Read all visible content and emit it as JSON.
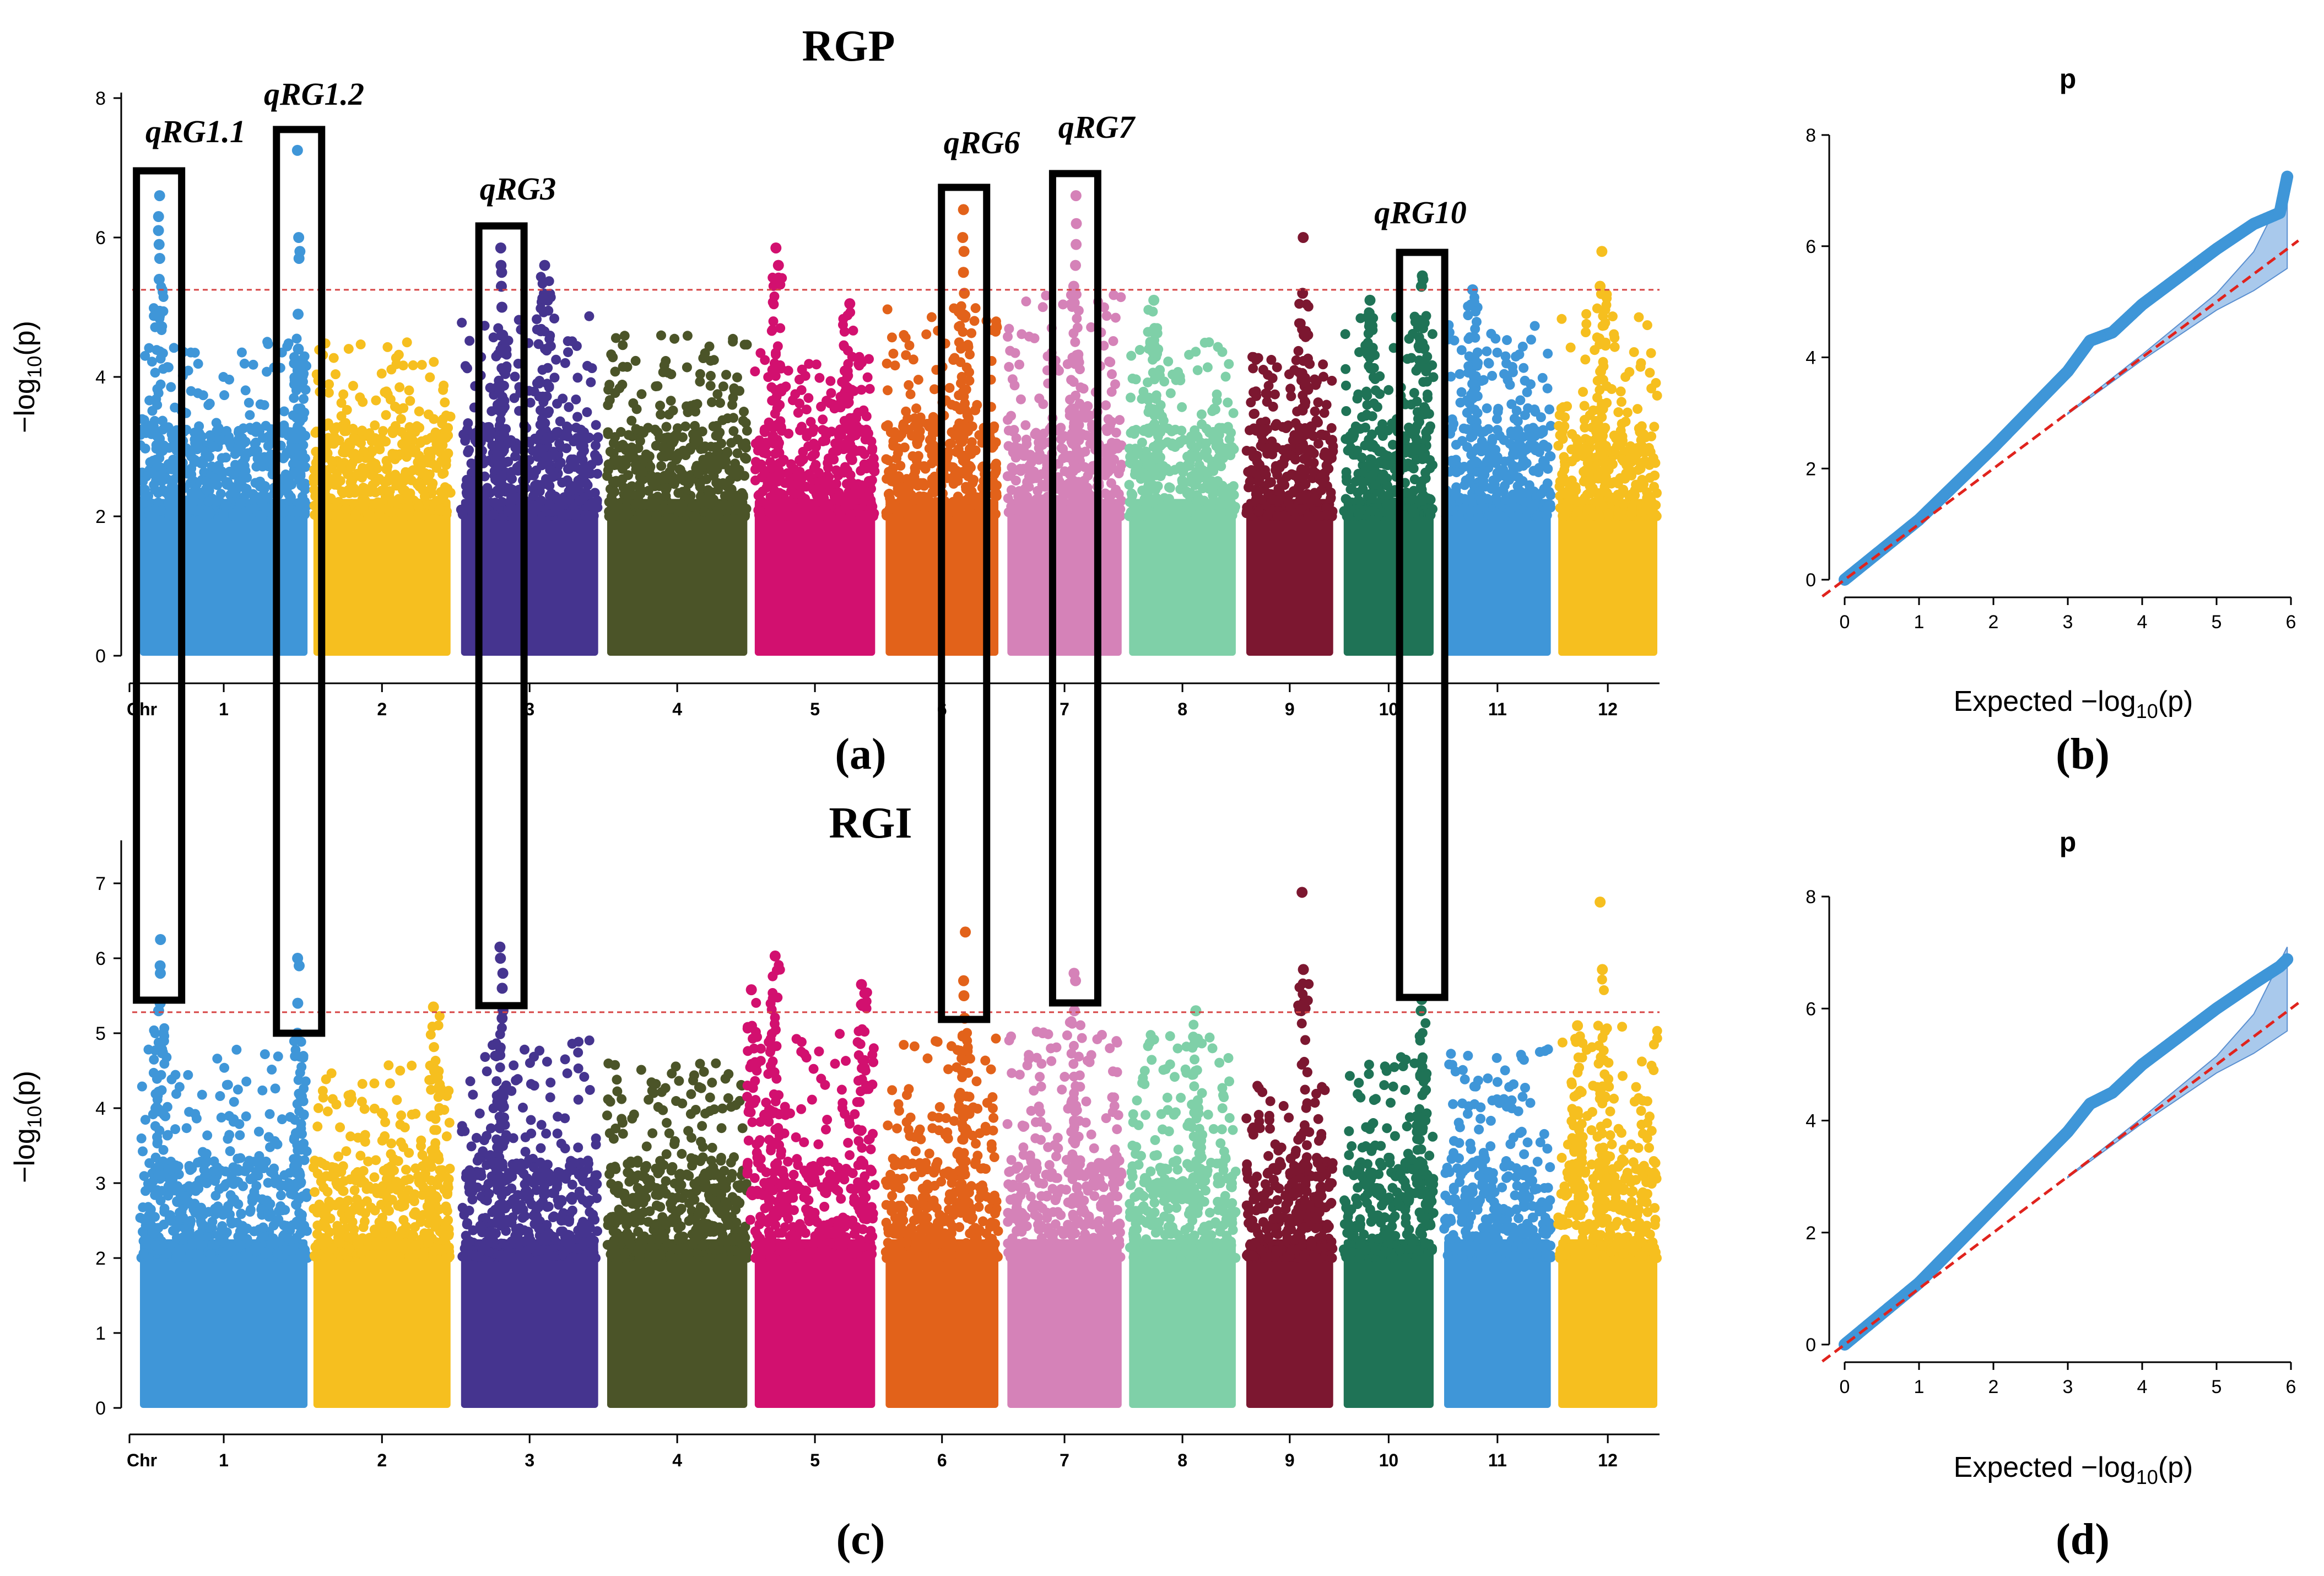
{
  "figure": {
    "colors": [
      "#3f96d8",
      "#f6bf1f",
      "#45348f",
      "#4b5428",
      "#d2106f",
      "#e2621a",
      "#d582b8",
      "#7fd0a8",
      "#7c1730",
      "#1f7356",
      "#3f96d8",
      "#f6bf1f"
    ],
    "threshold_color": "#d64545",
    "qq_point_color": "#3f96d8",
    "qq_band_color": "#a9c9ec",
    "qq_line_color": "#e0231d",
    "box_color": "#000000"
  },
  "panel_labels": {
    "a": "(a)",
    "b": "(b)",
    "c": "(c)",
    "d": "(d)"
  },
  "chart_data": [
    {
      "id": "a",
      "type": "scatter",
      "subtype": "manhattan",
      "title": "RGP",
      "ylabel": "-log10(p)",
      "xlabel_prefix": "Chr",
      "ylim": [
        0,
        8
      ],
      "yticks": [
        0,
        2,
        4,
        6,
        8
      ],
      "threshold": 5.25,
      "chromosomes": [
        "1",
        "2",
        "3",
        "4",
        "5",
        "6",
        "7",
        "8",
        "9",
        "10",
        "11",
        "12"
      ],
      "chr_extent": [
        [
          0,
          0.113
        ],
        [
          0.114,
          0.207
        ],
        [
          0.211,
          0.304
        ],
        [
          0.307,
          0.402
        ],
        [
          0.404,
          0.486
        ],
        [
          0.49,
          0.567
        ],
        [
          0.57,
          0.648
        ],
        [
          0.65,
          0.723
        ],
        [
          0.727,
          0.787
        ],
        [
          0.791,
          0.853
        ],
        [
          0.857,
          0.93
        ],
        [
          0.932,
          1.0
        ]
      ],
      "background_max": [
        4.6,
        4.5,
        4.9,
        4.6,
        4.4,
        5.0,
        5.2,
        4.5,
        4.3,
        4.9,
        4.8,
        5.0
      ],
      "peaks": [
        {
          "chr": "1",
          "x": 0.014,
          "y": [
            5.4,
            5.7,
            6.1,
            6.3,
            6.6,
            5.9
          ]
        },
        {
          "chr": "1",
          "x": 0.106,
          "y": [
            4.4,
            4.9,
            5.7,
            5.8,
            6.0,
            7.25
          ]
        },
        {
          "chr": "3",
          "x": 0.239,
          "y": [
            4.6,
            5.0,
            5.3,
            5.5,
            5.6,
            5.85
          ]
        },
        {
          "chr": "3",
          "x": 0.268,
          "y": [
            5.6
          ]
        },
        {
          "chr": "5",
          "x": 0.42,
          "y": [
            5.6,
            5.85
          ]
        },
        {
          "chr": "5",
          "x": 0.467,
          "y": [
            5.05
          ]
        },
        {
          "chr": "6",
          "x": 0.543,
          "y": [
            5.2,
            5.5,
            5.8,
            6.0,
            6.4
          ]
        },
        {
          "chr": "7",
          "x": 0.616,
          "y": [
            5.3,
            5.6,
            5.9,
            6.2,
            6.6
          ]
        },
        {
          "chr": "8",
          "x": 0.667,
          "y": [
            5.1
          ]
        },
        {
          "chr": "9",
          "x": 0.766,
          "y": [
            5.2,
            6.0
          ]
        },
        {
          "chr": "10",
          "x": 0.81,
          "y": [
            5.1
          ]
        },
        {
          "chr": "10",
          "x": 0.844,
          "y": [
            5.3,
            5.45,
            5.4
          ]
        },
        {
          "chr": "11",
          "x": 0.877,
          "y": [
            5.25
          ]
        },
        {
          "chr": "12",
          "x": 0.962,
          "y": [
            5.3,
            5.8
          ]
        }
      ],
      "regions": [
        {
          "label": "qRG1.1",
          "chr": "1",
          "x": 0.014
        },
        {
          "label": "qRG1.2",
          "chr": "1",
          "x": 0.106
        },
        {
          "label": "qRG3",
          "chr": "3",
          "x": 0.239
        },
        {
          "label": "qRG6",
          "chr": "6",
          "x": 0.543
        },
        {
          "label": "qRG7",
          "chr": "7",
          "x": 0.616
        },
        {
          "label": "qRG10",
          "chr": "10",
          "x": 0.844
        }
      ]
    },
    {
      "id": "c",
      "type": "scatter",
      "subtype": "manhattan",
      "title": "RGI",
      "ylabel": "-log10(p)",
      "xlabel_prefix": "Chr",
      "ylim": [
        0,
        7.5
      ],
      "yticks": [
        0,
        1,
        2,
        3,
        4,
        5,
        6,
        7
      ],
      "threshold": 5.28,
      "chromosomes": [
        "1",
        "2",
        "3",
        "4",
        "5",
        "6",
        "7",
        "8",
        "9",
        "10",
        "11",
        "12"
      ],
      "chr_extent": [
        [
          0,
          0.113
        ],
        [
          0.114,
          0.207
        ],
        [
          0.211,
          0.304
        ],
        [
          0.307,
          0.402
        ],
        [
          0.404,
          0.486
        ],
        [
          0.49,
          0.567
        ],
        [
          0.57,
          0.648
        ],
        [
          0.65,
          0.723
        ],
        [
          0.727,
          0.787
        ],
        [
          0.791,
          0.853
        ],
        [
          0.857,
          0.93
        ],
        [
          0.932,
          1.0
        ]
      ],
      "background_max": [
        4.8,
        4.6,
        5.0,
        4.6,
        5.0,
        5.0,
        5.2,
        5.0,
        4.3,
        4.7,
        4.8,
        5.1
      ],
      "peaks": [
        {
          "chr": "1",
          "x": 0.014,
          "y": [
            5.3,
            5.4,
            5.8,
            5.9,
            6.25
          ]
        },
        {
          "chr": "1",
          "x": 0.106,
          "y": [
            5.0,
            5.4,
            5.9,
            6.0
          ]
        },
        {
          "chr": "2",
          "x": 0.195,
          "y": [
            5.35
          ]
        },
        {
          "chr": "3",
          "x": 0.239,
          "y": [
            5.2,
            5.3,
            5.6,
            5.8,
            6.0,
            6.15
          ]
        },
        {
          "chr": "5",
          "x": 0.404,
          "y": [
            5.58
          ]
        },
        {
          "chr": "5",
          "x": 0.419,
          "y": [
            6.03
          ]
        },
        {
          "chr": "5",
          "x": 0.476,
          "y": [
            5.65
          ]
        },
        {
          "chr": "6",
          "x": 0.543,
          "y": [
            5.2,
            5.5,
            5.7,
            6.35
          ]
        },
        {
          "chr": "7",
          "x": 0.616,
          "y": [
            5.3,
            5.7,
            5.8
          ]
        },
        {
          "chr": "8",
          "x": 0.696,
          "y": [
            5.3
          ]
        },
        {
          "chr": "9",
          "x": 0.766,
          "y": [
            5.85,
            6.88
          ]
        },
        {
          "chr": "10",
          "x": 0.844,
          "y": [
            5.3,
            5.45
          ]
        },
        {
          "chr": "12",
          "x": 0.946,
          "y": [
            5.1
          ]
        },
        {
          "chr": "12",
          "x": 0.962,
          "y": [
            5.85,
            6.75
          ]
        }
      ],
      "regions": []
    },
    {
      "id": "b",
      "type": "scatter",
      "subtype": "qq",
      "title": "p",
      "xlabel": "Expected -log10(p)",
      "xlim": [
        0,
        6
      ],
      "ylim": [
        0,
        8
      ],
      "xticks": [
        0,
        1,
        2,
        3,
        4,
        5,
        6
      ],
      "yticks": [
        0,
        2,
        4,
        6,
        8
      ],
      "observed_curve": [
        [
          0,
          0
        ],
        [
          1,
          1.08
        ],
        [
          2,
          2.38
        ],
        [
          3,
          3.75
        ],
        [
          3.3,
          4.3
        ],
        [
          3.6,
          4.45
        ],
        [
          4,
          4.95
        ],
        [
          4.5,
          5.45
        ],
        [
          5,
          5.95
        ],
        [
          5.5,
          6.4
        ],
        [
          5.85,
          6.6
        ],
        [
          5.95,
          7.25
        ]
      ]
    },
    {
      "id": "d",
      "type": "scatter",
      "subtype": "qq",
      "title": "p",
      "xlabel": "Expected -log10(p)",
      "xlim": [
        0,
        6
      ],
      "ylim": [
        0,
        8
      ],
      "xticks": [
        0,
        1,
        2,
        3,
        4,
        5,
        6
      ],
      "yticks": [
        0,
        2,
        4,
        6,
        8
      ],
      "observed_curve": [
        [
          0,
          0
        ],
        [
          1,
          1.1
        ],
        [
          2,
          2.45
        ],
        [
          3,
          3.8
        ],
        [
          3.3,
          4.3
        ],
        [
          3.6,
          4.5
        ],
        [
          4,
          5.0
        ],
        [
          4.5,
          5.5
        ],
        [
          5,
          6.0
        ],
        [
          5.5,
          6.45
        ],
        [
          5.85,
          6.75
        ],
        [
          5.95,
          6.88
        ]
      ]
    }
  ]
}
